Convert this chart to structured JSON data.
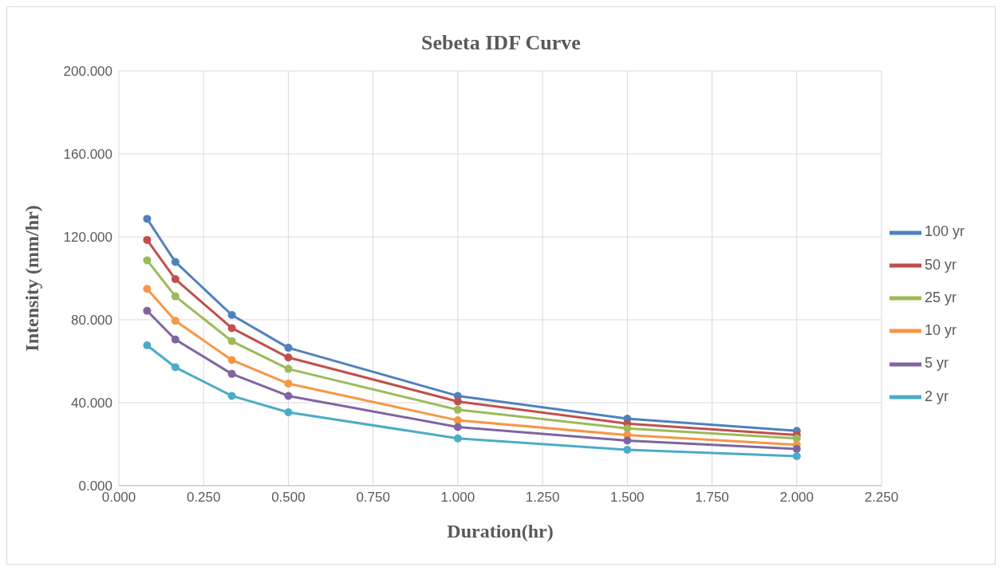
{
  "chart_data": {
    "type": "line",
    "title": "Sebeta IDF Curve",
    "xlabel": "Duration(hr)",
    "ylabel": "Intensity (mm/hr)",
    "x": [
      0.0833,
      0.1667,
      0.3333,
      0.5,
      1,
      1.5,
      2
    ],
    "series": [
      {
        "name": "100 yr",
        "color": "#4f81bd",
        "values": [
          128.7,
          107.9,
          82.3,
          66.5,
          43.3,
          32.3,
          26.4
        ]
      },
      {
        "name": "50 yr",
        "color": "#c0504d",
        "values": [
          118.5,
          99.6,
          76.0,
          61.8,
          40.6,
          29.9,
          24.4
        ]
      },
      {
        "name": "25 yr",
        "color": "#9bbb59",
        "values": [
          108.7,
          91.3,
          69.7,
          56.3,
          36.6,
          27.6,
          22.8
        ]
      },
      {
        "name": "10 yr",
        "color": "#f79646",
        "values": [
          94.9,
          79.5,
          60.6,
          49.2,
          31.5,
          24.4,
          19.7
        ]
      },
      {
        "name": "5 yr",
        "color": "#8064a2",
        "values": [
          84.3,
          70.5,
          53.9,
          43.3,
          28.3,
          21.7,
          17.7
        ]
      },
      {
        "name": "2 yr",
        "color": "#4bacc6",
        "values": [
          67.7,
          57.1,
          43.3,
          35.4,
          22.8,
          17.3,
          14.2
        ]
      }
    ],
    "xlim": [
      0,
      2.25
    ],
    "xticks": [
      {
        "value": 0,
        "label": "0.000"
      },
      {
        "value": 0.25,
        "label": "0.250"
      },
      {
        "value": 0.5,
        "label": "0.500"
      },
      {
        "value": 0.75,
        "label": "0.750"
      },
      {
        "value": 1,
        "label": "1.000"
      },
      {
        "value": 1.25,
        "label": "1.250"
      },
      {
        "value": 1.5,
        "label": "1.500"
      },
      {
        "value": 1.75,
        "label": "1.750"
      },
      {
        "value": 2,
        "label": "2.000"
      },
      {
        "value": 2.25,
        "label": "2.250"
      }
    ],
    "ylim": [
      0,
      200
    ],
    "yticks": [
      {
        "value": 0,
        "label": "0.000"
      },
      {
        "value": 40,
        "label": "40.000"
      },
      {
        "value": 80,
        "label": "80.000"
      },
      {
        "value": 120,
        "label": "120.000"
      },
      {
        "value": 160,
        "label": "160.000"
      },
      {
        "value": 200,
        "label": "200.000"
      }
    ],
    "grid": true,
    "legend": "right",
    "marker": "circle",
    "line_style": "solid"
  }
}
